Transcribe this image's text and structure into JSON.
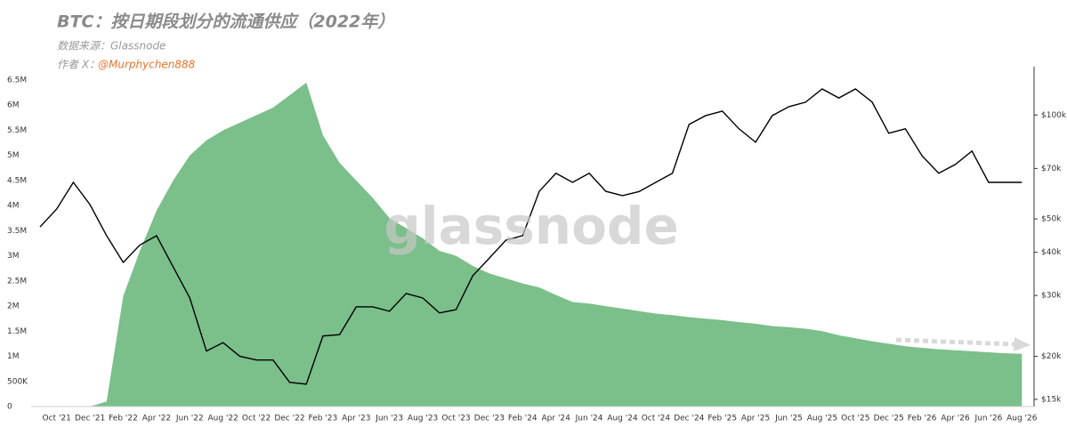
{
  "chart_data": {
    "type": "area-line",
    "title": "BTC：按日期段划分的流通供应（2022年）",
    "subtitle": "数据来源：Glassnode",
    "author_label": "作者 X：",
    "author_handle": "@Murphychen888",
    "watermark": "glassnode",
    "categories": [
      null,
      "Oct '21",
      null,
      "Dec '21",
      null,
      "Feb '22",
      null,
      "Apr '22",
      null,
      "Jun '22",
      null,
      "Aug '22",
      null,
      "Oct '22",
      null,
      "Dec '22",
      null,
      "Feb '23",
      null,
      "Apr '23",
      null,
      "Jun '23",
      null,
      "Aug '23",
      null,
      "Oct '23",
      null,
      "Dec '23",
      null,
      "Feb '24",
      null,
      "Apr '24",
      null,
      "Jun '24",
      null,
      "Aug '24",
      null,
      "Oct '24",
      null,
      "Dec '24",
      null,
      "Feb '25",
      null,
      "Apr '25",
      null,
      "Jun '25",
      null,
      "Aug '25",
      null,
      "Oct '25",
      null,
      "Dec '25",
      null,
      "Feb '26",
      null,
      "Apr '26",
      null,
      "Jun '26",
      null,
      "Aug '26"
    ],
    "series": [
      {
        "type": "area",
        "axis": "y",
        "color": "#7bbf8a",
        "values": [
          0,
          0,
          0,
          0,
          100000,
          2200000,
          3100000,
          3900000,
          4500000,
          5000000,
          5300000,
          5500000,
          5650000,
          5800000,
          5950000,
          6200000,
          6450000,
          5400000,
          4850000,
          4500000,
          4150000,
          3750000,
          3550000,
          3350000,
          3100000,
          3000000,
          2800000,
          2650000,
          2550000,
          2450000,
          2370000,
          2220000,
          2080000,
          2050000,
          2000000,
          1950000,
          1900000,
          1850000,
          1820000,
          1780000,
          1750000,
          1720000,
          1680000,
          1650000,
          1600000,
          1580000,
          1550000,
          1500000,
          1420000,
          1360000,
          1300000,
          1250000,
          1200000,
          1170000,
          1140000,
          1120000,
          1100000,
          1080000,
          1060000,
          1050000
        ]
      },
      {
        "type": "line",
        "axis": "y2",
        "color": "#000000",
        "values": [
          47400,
          53400,
          63800,
          55000,
          44700,
          37400,
          42000,
          44700,
          36300,
          29500,
          20700,
          21900,
          20000,
          19500,
          19500,
          16800,
          16600,
          22900,
          23100,
          27800,
          27800,
          27000,
          30400,
          29500,
          26700,
          27300,
          34200,
          38500,
          43400,
          44700,
          60100,
          67800,
          63800,
          67800,
          60100,
          58400,
          60000,
          63800,
          67800,
          93900,
          99600,
          102600,
          91200,
          83400,
          99600,
          105700,
          108900,
          119000,
          112000,
          119000,
          109000,
          88500,
          91200,
          76200,
          67800,
          71900,
          78600,
          63800,
          63800,
          63800
        ]
      }
    ],
    "ylim": [
      0,
      6500000
    ],
    "yticks": [
      0,
      {
        "value": 500000,
        "label": "500K"
      },
      {
        "value": 1000000,
        "label": "1M"
      },
      {
        "value": 1500000,
        "label": "1.5M"
      },
      {
        "value": 2000000,
        "label": "2M"
      },
      {
        "value": 2500000,
        "label": "2.5M"
      },
      {
        "value": 3000000,
        "label": "3M"
      },
      {
        "value": 3500000,
        "label": "3.5M"
      },
      {
        "value": 4000000,
        "label": "4M"
      },
      {
        "value": 4500000,
        "label": "4.5M"
      },
      {
        "value": 5000000,
        "label": "5M"
      },
      {
        "value": 5500000,
        "label": "5.5M"
      },
      {
        "value": 6000000,
        "label": "6M"
      },
      {
        "value": 6500000,
        "label": "6.5M"
      }
    ],
    "y2lim": [
      14300,
      138000
    ],
    "y2scale": "log",
    "y2ticks": [
      {
        "value": 15000,
        "label": "$15k"
      },
      {
        "value": 20000,
        "label": "$20k"
      },
      {
        "value": 30000,
        "label": "$30k"
      },
      {
        "value": 40000,
        "label": "$40k"
      },
      {
        "value": 50000,
        "label": "$50k"
      },
      {
        "value": 70000,
        "label": "$70k"
      },
      {
        "value": 100000,
        "label": "$100k"
      }
    ],
    "grid": false
  }
}
